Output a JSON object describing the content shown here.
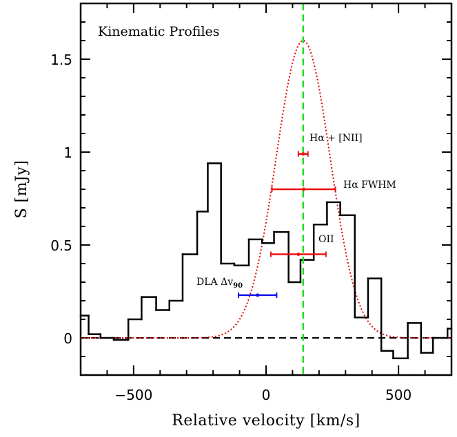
{
  "chart_data": {
    "type": "histogram",
    "annotation": "Kinematic Profiles",
    "x_label": "Relative velocity [km/s]",
    "y_label": "S [mJy]",
    "xlim": [
      -700,
      700
    ],
    "ylim": [
      -0.2,
      1.8
    ],
    "xticks": [
      {
        "value": -500,
        "label": "−500"
      },
      0,
      500
    ],
    "yticks": [
      0,
      0.5,
      1,
      1.5
    ],
    "xminor_ticks": [
      -600,
      -400,
      -300,
      -200,
      -100,
      100,
      200,
      300,
      400,
      600
    ],
    "yminor_ticks": [
      -0.1,
      0.1,
      0.2,
      0.3,
      0.4,
      0.6,
      0.7,
      0.8,
      0.9,
      1.1,
      1.2,
      1.3,
      1.4,
      1.6,
      1.7
    ],
    "color": "#000000",
    "bins": [
      -700,
      -670,
      -625,
      -575,
      -520,
      -470,
      -415,
      -365,
      -315,
      -260,
      -220,
      -170,
      -120,
      -65,
      -15,
      30,
      85,
      130,
      180,
      230,
      280,
      335,
      385,
      435,
      480,
      535,
      585,
      630,
      685,
      700
    ],
    "values": [
      0.12,
      0.02,
      0.0,
      -0.01,
      0.1,
      0.22,
      0.15,
      0.2,
      0.45,
      0.68,
      0.94,
      0.4,
      0.39,
      0.53,
      0.51,
      0.57,
      0.3,
      0.42,
      0.61,
      0.73,
      0.66,
      0.11,
      0.32,
      -0.07,
      -0.11,
      0.08,
      -0.08,
      0,
      0.05
    ],
    "gaussian": {
      "center": 140,
      "peak": 1.6,
      "fwhm": 240,
      "color": "#e00000"
    },
    "vline": {
      "x": 140,
      "color": "#22dd22"
    },
    "hline": {
      "y": 0,
      "color": "#000000"
    },
    "error_bars": [
      {
        "label": "Hα + [NII]",
        "x": 140,
        "xerr": 18,
        "y": 0.99,
        "color": "#ee1111"
      },
      {
        "label": "Hα FWHM",
        "x": 142,
        "xerr": 120,
        "y": 0.8,
        "color": "#ee1111"
      },
      {
        "label": "OII",
        "x": 122,
        "xerr": 104,
        "y": 0.45,
        "color": "#ee1111"
      },
      {
        "label": "DLA Δv",
        "subscript": "90",
        "x": -32,
        "xerr": 72,
        "y": 0.23,
        "color": "#1111ee"
      }
    ]
  }
}
